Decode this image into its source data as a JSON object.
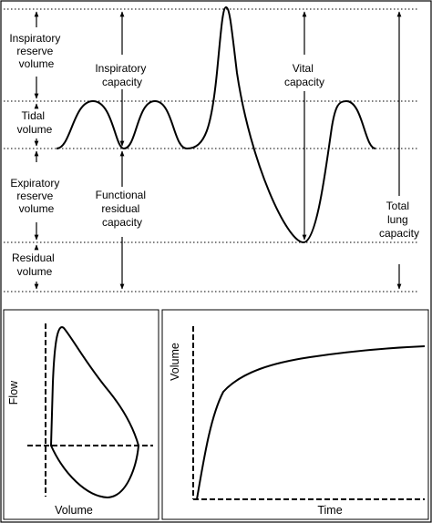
{
  "volumes_panel": {
    "labels": {
      "inspiratory_reserve_volume": [
        "Inspiratory",
        "reserve",
        "volume"
      ],
      "tidal_volume": [
        "Tidal",
        "volume"
      ],
      "expiratory_reserve_volume": [
        "Expiratory",
        "reserve",
        "volume"
      ],
      "residual_volume": [
        "Residual",
        "volume"
      ],
      "inspiratory_capacity": [
        "Inspiratory",
        "capacity"
      ],
      "functional_residual_capacity": [
        "Functional",
        "residual",
        "capacity"
      ],
      "vital_capacity": [
        "Vital",
        "capacity"
      ],
      "total_lung_capacity": [
        "Total",
        "lung",
        "capacity"
      ]
    }
  },
  "flow_volume_loop": {
    "ylabel": "Flow",
    "xlabel": "Volume"
  },
  "volume_time_curve": {
    "ylabel": "Volume",
    "xlabel": "Time"
  }
}
